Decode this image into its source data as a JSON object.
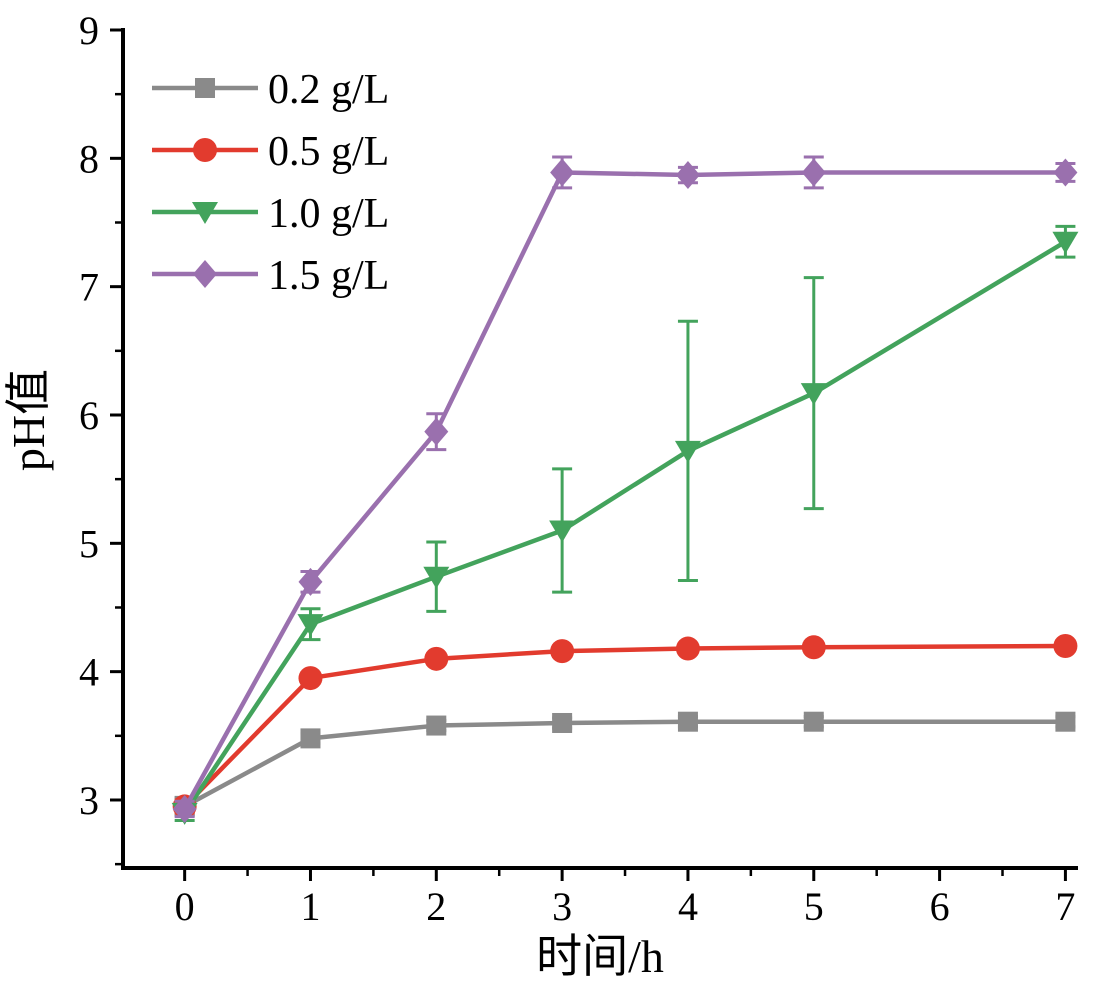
{
  "chart_data": {
    "type": "line",
    "title": "",
    "xlabel": "时间/h",
    "ylabel": "pH值",
    "x": [
      0,
      1,
      2,
      3,
      4,
      5,
      7
    ],
    "x_ticks": [
      0,
      1,
      2,
      3,
      4,
      5,
      6,
      7
    ],
    "y_ticks": [
      3,
      4,
      5,
      6,
      7,
      8,
      9
    ],
    "xlim": [
      -0.49,
      7.1
    ],
    "ylim": [
      2.47,
      9.0
    ],
    "grid": false,
    "legend_position": "top-left",
    "axis_color": "#000000",
    "series": [
      {
        "name": "0.2 g/L",
        "color": "#8a8a8a",
        "marker": "square",
        "values": [
          2.95,
          3.48,
          3.58,
          3.6,
          3.61,
          3.61,
          3.61
        ],
        "errors": [
          0.07,
          0.04,
          0.04,
          0.04,
          0.04,
          0.04,
          0.04
        ]
      },
      {
        "name": "0.5 g/L",
        "color": "#e23b2e",
        "marker": "circle",
        "values": [
          2.95,
          3.95,
          4.1,
          4.16,
          4.18,
          4.19,
          4.2
        ],
        "errors": [
          0.05,
          0.04,
          0.04,
          0.04,
          0.04,
          0.04,
          0.04
        ]
      },
      {
        "name": "1.0 g/L",
        "color": "#43a35c",
        "marker": "triangle-down",
        "values": [
          2.9,
          4.37,
          4.74,
          5.1,
          5.72,
          6.17,
          7.35
        ],
        "errors": [
          0.06,
          0.12,
          0.27,
          0.48,
          1.01,
          0.9,
          0.12
        ]
      },
      {
        "name": "1.5 g/L",
        "color": "#9a70ae",
        "marker": "diamond",
        "values": [
          2.93,
          4.7,
          5.87,
          7.89,
          7.87,
          7.89,
          7.89
        ],
        "errors": [
          0.06,
          0.08,
          0.14,
          0.12,
          0.06,
          0.12,
          0.07
        ]
      }
    ]
  }
}
